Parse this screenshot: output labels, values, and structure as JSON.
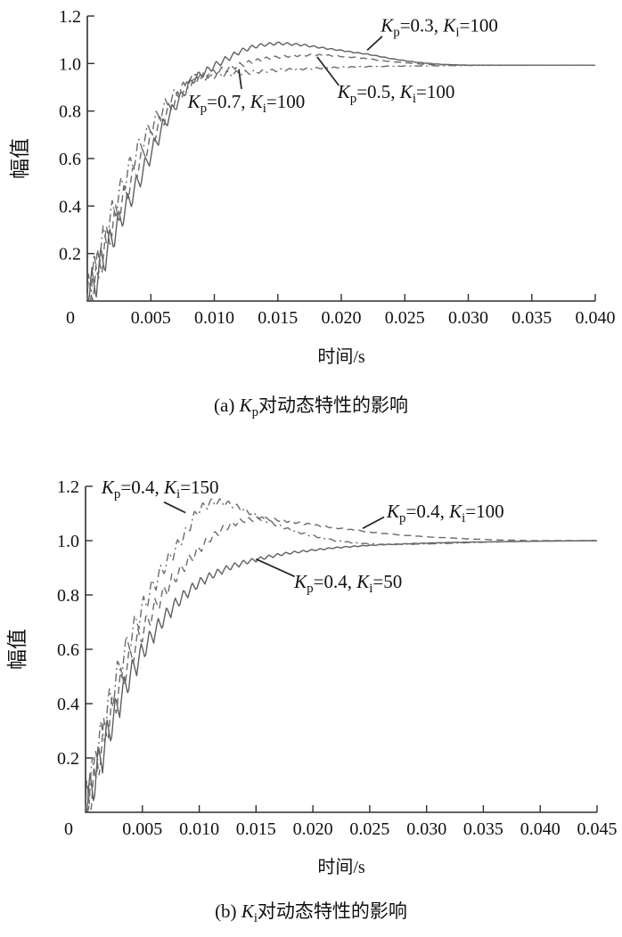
{
  "page": {
    "background": "#ffffff",
    "ink": "#111111",
    "leader_color": "#222222"
  },
  "chart_data": [
    {
      "id": "a",
      "type": "line",
      "caption": "(a) K_p对动态特性的影响",
      "xlabel": "时间/s",
      "ylabel": "幅值",
      "xlim": [
        0,
        0.04
      ],
      "ylim": [
        0,
        1.2
      ],
      "xticks": [
        0,
        0.005,
        0.01,
        0.015,
        0.02,
        0.025,
        0.03,
        0.035,
        0.04
      ],
      "xtick_labels": [
        "0",
        "0.005",
        "0.010",
        "0.015",
        "0.020",
        "0.025",
        "0.030",
        "0.035",
        "0.040"
      ],
      "yticks": [
        0.2,
        0.4,
        0.6,
        0.8,
        1.0,
        1.2
      ],
      "ytick_labels": [
        "0.2",
        "0.4",
        "0.6",
        "0.8",
        "1.0",
        "1.2"
      ],
      "grid": false,
      "legend": "inline-annotations",
      "axis_color": "#2f2f2f",
      "ripple": {
        "amplitude": 0.1,
        "period": 0.0007,
        "decay_tau": 0.0055
      },
      "series": [
        {
          "name": "K_p=0.3, K_i=100",
          "line_style": "solid",
          "color": "#5f5f5f",
          "points": [
            [
              0,
              0
            ],
            [
              0.001,
              0.14
            ],
            [
              0.002,
              0.27
            ],
            [
              0.003,
              0.39
            ],
            [
              0.004,
              0.5
            ],
            [
              0.005,
              0.62
            ],
            [
              0.006,
              0.74
            ],
            [
              0.007,
              0.83
            ],
            [
              0.008,
              0.91
            ],
            [
              0.0084,
              0.937
            ],
            [
              0.009,
              0.955
            ],
            [
              0.01,
              0.99
            ],
            [
              0.011,
              1.02
            ],
            [
              0.012,
              1.05
            ],
            [
              0.013,
              1.07
            ],
            [
              0.014,
              1.08
            ],
            [
              0.015,
              1.085
            ],
            [
              0.016,
              1.082
            ],
            [
              0.017,
              1.078
            ],
            [
              0.018,
              1.07
            ],
            [
              0.019,
              1.062
            ],
            [
              0.02,
              1.055
            ],
            [
              0.021,
              1.047
            ],
            [
              0.022,
              1.04
            ],
            [
              0.023,
              1.03
            ],
            [
              0.024,
              1.02
            ],
            [
              0.025,
              1.012
            ],
            [
              0.026,
              1.005
            ],
            [
              0.027,
              1.0
            ],
            [
              0.028,
              0.996
            ],
            [
              0.03,
              0.993
            ],
            [
              0.034,
              0.993
            ],
            [
              0.04,
              0.993
            ]
          ]
        },
        {
          "name": "K_p=0.5, K_i=100",
          "line_style": "dashed",
          "color": "#6b6b6b",
          "points": [
            [
              0,
              0
            ],
            [
              0.001,
              0.17
            ],
            [
              0.002,
              0.32
            ],
            [
              0.003,
              0.45
            ],
            [
              0.004,
              0.57
            ],
            [
              0.005,
              0.68
            ],
            [
              0.006,
              0.77
            ],
            [
              0.007,
              0.85
            ],
            [
              0.008,
              0.915
            ],
            [
              0.0084,
              0.937
            ],
            [
              0.009,
              0.945
            ],
            [
              0.01,
              0.962
            ],
            [
              0.011,
              0.978
            ],
            [
              0.012,
              0.993
            ],
            [
              0.013,
              1.008
            ],
            [
              0.014,
              1.02
            ],
            [
              0.015,
              1.027
            ],
            [
              0.016,
              1.032
            ],
            [
              0.017,
              1.035
            ],
            [
              0.018,
              1.036
            ],
            [
              0.019,
              1.034
            ],
            [
              0.02,
              1.03
            ],
            [
              0.021,
              1.026
            ],
            [
              0.022,
              1.02
            ],
            [
              0.023,
              1.014
            ],
            [
              0.024,
              1.008
            ],
            [
              0.025,
              1.003
            ],
            [
              0.026,
              0.999
            ],
            [
              0.027,
              0.996
            ],
            [
              0.028,
              0.995
            ],
            [
              0.03,
              0.993
            ],
            [
              0.034,
              0.993
            ],
            [
              0.04,
              0.993
            ]
          ]
        },
        {
          "name": "K_p=0.7, K_i=100",
          "line_style": "dashdot",
          "color": "#6b6b6b",
          "points": [
            [
              0,
              0
            ],
            [
              0.001,
              0.2
            ],
            [
              0.002,
              0.37
            ],
            [
              0.003,
              0.52
            ],
            [
              0.004,
              0.64
            ],
            [
              0.005,
              0.73
            ],
            [
              0.006,
              0.81
            ],
            [
              0.007,
              0.875
            ],
            [
              0.008,
              0.92
            ],
            [
              0.0084,
              0.937
            ],
            [
              0.009,
              0.942
            ],
            [
              0.01,
              0.95
            ],
            [
              0.011,
              0.956
            ],
            [
              0.012,
              0.96
            ],
            [
              0.013,
              0.964
            ],
            [
              0.014,
              0.968
            ],
            [
              0.015,
              0.972
            ],
            [
              0.016,
              0.975
            ],
            [
              0.018,
              0.98
            ],
            [
              0.02,
              0.984
            ],
            [
              0.022,
              0.987
            ],
            [
              0.024,
              0.989
            ],
            [
              0.026,
              0.99
            ],
            [
              0.028,
              0.991
            ],
            [
              0.03,
              0.992
            ],
            [
              0.034,
              0.993
            ],
            [
              0.04,
              0.993
            ]
          ]
        }
      ],
      "annotations": [
        {
          "text": "K_p=0.3, K_i=100",
          "anchor_t": 0.0231,
          "anchor_v": 1.135,
          "leader": [
            [
              0.02323,
              1.115
            ],
            [
              0.02204,
              1.056
            ]
          ]
        },
        {
          "text": "K_p=0.5, K_i=100",
          "anchor_t": 0.0197,
          "anchor_v": 0.855,
          "leader": [
            [
              0.0198,
              0.908
            ],
            [
              0.0181,
              1.028
            ]
          ]
        },
        {
          "text": "K_p=0.7, K_i=100",
          "anchor_t": 0.0079,
          "anchor_v": 0.814,
          "leader": [
            [
              0.01214,
              0.893
            ],
            [
              0.01193,
              0.976
            ]
          ]
        }
      ]
    },
    {
      "id": "b",
      "type": "line",
      "caption": "(b) K_i对动态特性的影响",
      "xlabel": "时间/s",
      "ylabel": "幅值",
      "xlim": [
        0,
        0.045
      ],
      "ylim": [
        0,
        1.2
      ],
      "xticks": [
        0,
        0.005,
        0.01,
        0.015,
        0.02,
        0.025,
        0.03,
        0.035,
        0.04,
        0.045
      ],
      "xtick_labels": [
        "0",
        "0.005",
        "0.010",
        "0.015",
        "0.020",
        "0.025",
        "0.030",
        "0.035",
        "0.040",
        "0.045"
      ],
      "yticks": [
        0.2,
        0.4,
        0.6,
        0.8,
        1.0,
        1.2
      ],
      "ytick_labels": [
        "0.2",
        "0.4",
        "0.6",
        "0.8",
        "1.0",
        "1.2"
      ],
      "grid": false,
      "legend": "inline-annotations",
      "axis_color": "#2f2f2f",
      "ripple": {
        "amplitude": 0.1,
        "period": 0.00075,
        "decay_tau": 0.006
      },
      "series": [
        {
          "name": "K_p=0.4, K_i=50",
          "line_style": "solid",
          "color": "#5f5f5f",
          "points": [
            [
              0,
              0
            ],
            [
              0.001,
              0.155
            ],
            [
              0.002,
              0.29
            ],
            [
              0.003,
              0.41
            ],
            [
              0.004,
              0.51
            ],
            [
              0.005,
              0.59
            ],
            [
              0.006,
              0.66
            ],
            [
              0.007,
              0.72
            ],
            [
              0.008,
              0.77
            ],
            [
              0.009,
              0.812
            ],
            [
              0.01,
              0.845
            ],
            [
              0.011,
              0.87
            ],
            [
              0.012,
              0.89
            ],
            [
              0.013,
              0.907
            ],
            [
              0.014,
              0.92
            ],
            [
              0.015,
              0.93
            ],
            [
              0.016,
              0.94
            ],
            [
              0.017,
              0.948
            ],
            [
              0.018,
              0.955
            ],
            [
              0.019,
              0.96
            ],
            [
              0.02,
              0.965
            ],
            [
              0.022,
              0.974
            ],
            [
              0.024,
              0.98
            ],
            [
              0.026,
              0.985
            ],
            [
              0.028,
              0.988
            ],
            [
              0.03,
              0.991
            ],
            [
              0.033,
              0.994
            ],
            [
              0.036,
              0.996
            ],
            [
              0.04,
              0.998
            ],
            [
              0.045,
              1.0
            ]
          ]
        },
        {
          "name": "K_p=0.4, K_i=100",
          "line_style": "dashed",
          "color": "#6b6b6b",
          "points": [
            [
              0,
              0
            ],
            [
              0.001,
              0.18
            ],
            [
              0.002,
              0.33
            ],
            [
              0.003,
              0.46
            ],
            [
              0.004,
              0.575
            ],
            [
              0.005,
              0.665
            ],
            [
              0.006,
              0.745
            ],
            [
              0.007,
              0.815
            ],
            [
              0.008,
              0.872
            ],
            [
              0.009,
              0.922
            ],
            [
              0.01,
              0.968
            ],
            [
              0.011,
              1.01
            ],
            [
              0.012,
              1.04
            ],
            [
              0.013,
              1.062
            ],
            [
              0.014,
              1.075
            ],
            [
              0.015,
              1.08
            ],
            [
              0.016,
              1.08
            ],
            [
              0.017,
              1.076
            ],
            [
              0.018,
              1.07
            ],
            [
              0.019,
              1.064
            ],
            [
              0.02,
              1.058
            ],
            [
              0.021,
              1.052
            ],
            [
              0.022,
              1.047
            ],
            [
              0.023,
              1.042
            ],
            [
              0.024,
              1.037
            ],
            [
              0.025,
              1.032
            ],
            [
              0.026,
              1.027
            ],
            [
              0.028,
              1.02
            ],
            [
              0.03,
              1.014
            ],
            [
              0.032,
              1.01
            ],
            [
              0.034,
              1.006
            ],
            [
              0.036,
              1.003
            ],
            [
              0.038,
              1.001
            ],
            [
              0.04,
              1.0
            ],
            [
              0.045,
              1.0
            ]
          ]
        },
        {
          "name": "K_p=0.4, K_i=150",
          "line_style": "dashdot",
          "color": "#6b6b6b",
          "points": [
            [
              0,
              0
            ],
            [
              0.001,
              0.21
            ],
            [
              0.002,
              0.38
            ],
            [
              0.003,
              0.53
            ],
            [
              0.004,
              0.65
            ],
            [
              0.005,
              0.75
            ],
            [
              0.006,
              0.838
            ],
            [
              0.007,
              0.91
            ],
            [
              0.008,
              0.975
            ],
            [
              0.009,
              1.04
            ],
            [
              0.0095,
              1.085
            ],
            [
              0.01,
              1.115
            ],
            [
              0.011,
              1.14
            ],
            [
              0.012,
              1.142
            ],
            [
              0.013,
              1.13
            ],
            [
              0.014,
              1.112
            ],
            [
              0.015,
              1.092
            ],
            [
              0.016,
              1.072
            ],
            [
              0.017,
              1.055
            ],
            [
              0.018,
              1.04
            ],
            [
              0.019,
              1.028
            ],
            [
              0.02,
              1.018
            ],
            [
              0.021,
              1.008
            ],
            [
              0.022,
              1.0
            ],
            [
              0.023,
              0.995
            ],
            [
              0.024,
              0.99
            ],
            [
              0.026,
              0.986
            ],
            [
              0.028,
              0.986
            ],
            [
              0.03,
              0.988
            ],
            [
              0.032,
              0.99
            ],
            [
              0.034,
              0.993
            ],
            [
              0.036,
              0.995
            ],
            [
              0.038,
              0.997
            ],
            [
              0.04,
              0.999
            ],
            [
              0.045,
              1.0
            ]
          ]
        }
      ],
      "annotations": [
        {
          "text": "K_p=0.4, K_i=150",
          "anchor_t": 0.0014,
          "anchor_v": 1.174,
          "leader": [
            [
              0.0069,
              1.142
            ],
            [
              0.0088,
              1.103
            ]
          ]
        },
        {
          "text": "K_p=0.4, K_i=100",
          "anchor_t": 0.0265,
          "anchor_v": 1.085,
          "leader": [
            [
              0.02626,
              1.087
            ],
            [
              0.02438,
              1.045
            ]
          ]
        },
        {
          "text": "K_p=0.4, K_i=50",
          "anchor_t": 0.01835,
          "anchor_v": 0.826,
          "leader": [
            [
              0.0184,
              0.868
            ],
            [
              0.015,
              0.932
            ]
          ]
        }
      ]
    }
  ]
}
